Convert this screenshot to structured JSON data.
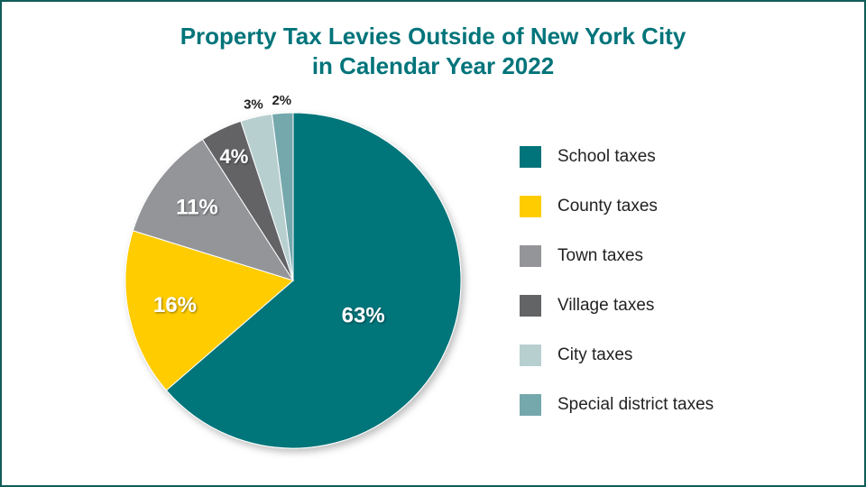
{
  "title_line1": "Property Tax Levies Outside of New York City",
  "title_line2": "in Calendar Year 2022",
  "chart_data": {
    "type": "pie",
    "title": "Property Tax Levies Outside of New York City in Calendar Year 2022",
    "slices": [
      {
        "label": "School taxes",
        "value": 63,
        "display": "63%",
        "color": "#00747a",
        "label_color": "#ffffff"
      },
      {
        "label": "County taxes",
        "value": 16,
        "display": "16%",
        "color": "#ffcc00",
        "label_color": "#ffffff"
      },
      {
        "label": "Town taxes",
        "value": 11,
        "display": "11%",
        "color": "#939598",
        "label_color": "#ffffff"
      },
      {
        "label": "Village taxes",
        "value": 4,
        "display": "4%",
        "color": "#636466",
        "label_color": "#ffffff"
      },
      {
        "label": "City taxes",
        "value": 3,
        "display": "3%",
        "color": "#b8cfd0",
        "label_color": "#222222"
      },
      {
        "label": "Special district taxes",
        "value": 2,
        "display": "2%",
        "color": "#74a8ad",
        "label_color": "#222222"
      }
    ],
    "legend_position": "right"
  }
}
